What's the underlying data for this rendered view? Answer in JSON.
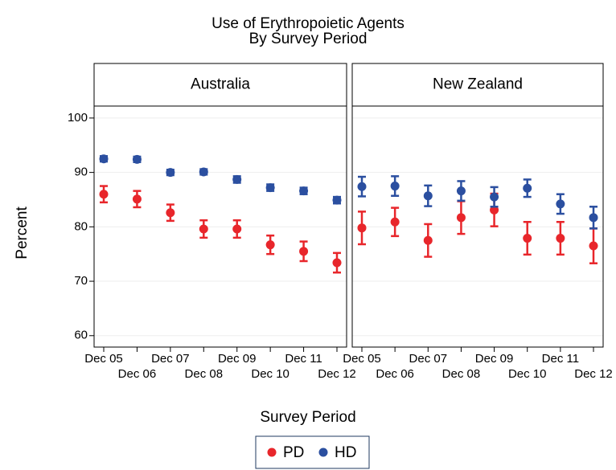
{
  "chart_data": {
    "type": "errorbar",
    "title": "Use of Erythropoietic Agents",
    "subtitle": "By Survey Period",
    "x_label": "Survey Period",
    "y_label": "Percent",
    "categories": [
      "Dec 05",
      "Dec 06",
      "Dec 07",
      "Dec 08",
      "Dec 09",
      "Dec 10",
      "Dec 11",
      "Dec 12"
    ],
    "ylim": [
      57.9,
      102.2
    ],
    "yticks": [
      60,
      70,
      80,
      90,
      100
    ],
    "grid": true,
    "legend": "bottom",
    "panels": [
      {
        "name": "Australia",
        "series": [
          {
            "name": "PD",
            "color": "#e8262b",
            "values": [
              86.0,
              85.1,
              82.6,
              79.6,
              79.6,
              76.7,
              75.5,
              73.4
            ],
            "errors": [
              1.5,
              1.5,
              1.5,
              1.6,
              1.6,
              1.7,
              1.8,
              1.8
            ]
          },
          {
            "name": "HD",
            "color": "#2b4fa0",
            "values": [
              92.5,
              92.4,
              90.0,
              90.1,
              88.7,
              87.2,
              86.6,
              84.9
            ],
            "errors": [
              0.5,
              0.5,
              0.5,
              0.5,
              0.6,
              0.6,
              0.6,
              0.6
            ]
          }
        ]
      },
      {
        "name": "New Zealand",
        "series": [
          {
            "name": "PD",
            "color": "#e8262b",
            "values": [
              79.8,
              80.9,
              77.5,
              81.7,
              83.1,
              77.9,
              77.9,
              76.5
            ],
            "errors": [
              3.0,
              2.6,
              3.0,
              3.0,
              3.0,
              3.0,
              3.0,
              3.2
            ]
          },
          {
            "name": "HD",
            "color": "#2b4fa0",
            "values": [
              87.4,
              87.5,
              85.7,
              86.6,
              85.5,
              87.1,
              84.2,
              81.7
            ],
            "errors": [
              1.8,
              1.8,
              1.9,
              1.8,
              1.8,
              1.6,
              1.8,
              2.0
            ]
          }
        ]
      }
    ]
  }
}
